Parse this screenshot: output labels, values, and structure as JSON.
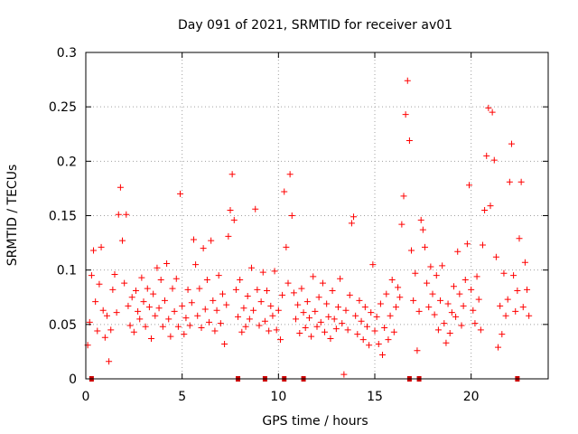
{
  "chart_data": {
    "type": "scatter",
    "title": "Day 091 of 2021, SRMTID for receiver av01",
    "xlabel": "GPS time / hours",
    "ylabel": "SRMTID / TECUs",
    "xlim": [
      0,
      24
    ],
    "ylim": [
      0,
      0.3
    ],
    "xticks": [
      0,
      5,
      10,
      15,
      20
    ],
    "xtick_labels": [
      "0",
      "5",
      "10",
      "15",
      "20"
    ],
    "yticks": [
      0,
      0.05,
      0.1,
      0.15,
      0.2,
      0.25,
      0.3
    ],
    "ytick_labels": [
      "0",
      "0.05",
      "0.1",
      "0.15",
      "0.2",
      "0.25",
      "0.3"
    ],
    "grid": true,
    "marker": "+",
    "series": [
      {
        "name": "SRMTID",
        "color": "#ff0000",
        "points": [
          [
            0.1,
            0.031
          ],
          [
            0.2,
            0.052
          ],
          [
            0.3,
            0.095
          ],
          [
            0.4,
            0.118
          ],
          [
            0.5,
            0.071
          ],
          [
            0.6,
            0.044
          ],
          [
            0.7,
            0.087
          ],
          [
            0.8,
            0.121
          ],
          [
            0.9,
            0.063
          ],
          [
            1.0,
            0.038
          ],
          [
            1.1,
            0.058
          ],
          [
            1.2,
            0.016
          ],
          [
            1.3,
            0.045
          ],
          [
            1.4,
            0.082
          ],
          [
            1.5,
            0.096
          ],
          [
            1.6,
            0.061
          ],
          [
            1.7,
            0.151
          ],
          [
            1.8,
            0.176
          ],
          [
            1.9,
            0.127
          ],
          [
            2.0,
            0.088
          ],
          [
            2.1,
            0.151
          ],
          [
            2.2,
            0.067
          ],
          [
            2.3,
            0.049
          ],
          [
            2.4,
            0.075
          ],
          [
            2.5,
            0.043
          ],
          [
            2.6,
            0.081
          ],
          [
            2.7,
            0.062
          ],
          [
            2.8,
            0.055
          ],
          [
            2.9,
            0.093
          ],
          [
            3.0,
            0.071
          ],
          [
            3.1,
            0.048
          ],
          [
            3.2,
            0.083
          ],
          [
            3.3,
            0.066
          ],
          [
            3.4,
            0.037
          ],
          [
            3.5,
            0.078
          ],
          [
            3.6,
            0.058
          ],
          [
            3.7,
            0.102
          ],
          [
            3.8,
            0.065
          ],
          [
            3.9,
            0.091
          ],
          [
            4.0,
            0.048
          ],
          [
            4.1,
            0.072
          ],
          [
            4.2,
            0.106
          ],
          [
            4.3,
            0.055
          ],
          [
            4.4,
            0.039
          ],
          [
            4.5,
            0.083
          ],
          [
            4.6,
            0.062
          ],
          [
            4.7,
            0.092
          ],
          [
            4.8,
            0.048
          ],
          [
            4.9,
            0.17
          ],
          [
            5.0,
            0.067
          ],
          [
            5.1,
            0.041
          ],
          [
            5.2,
            0.056
          ],
          [
            5.3,
            0.082
          ],
          [
            5.4,
            0.049
          ],
          [
            5.5,
            0.07
          ],
          [
            5.6,
            0.128
          ],
          [
            5.7,
            0.105
          ],
          [
            5.8,
            0.058
          ],
          [
            5.9,
            0.083
          ],
          [
            6.0,
            0.047
          ],
          [
            6.1,
            0.12
          ],
          [
            6.2,
            0.064
          ],
          [
            6.3,
            0.091
          ],
          [
            6.4,
            0.052
          ],
          [
            6.5,
            0.127
          ],
          [
            6.6,
            0.072
          ],
          [
            6.7,
            0.044
          ],
          [
            6.8,
            0.063
          ],
          [
            6.9,
            0.095
          ],
          [
            7.0,
            0.051
          ],
          [
            7.1,
            0.078
          ],
          [
            7.2,
            0.032
          ],
          [
            7.3,
            0.068
          ],
          [
            7.4,
            0.131
          ],
          [
            7.5,
            0.155
          ],
          [
            7.6,
            0.188
          ],
          [
            7.7,
            0.146
          ],
          [
            7.8,
            0.082
          ],
          [
            7.9,
            0.057
          ],
          [
            8.0,
            0.091
          ],
          [
            8.1,
            0.043
          ],
          [
            8.2,
            0.065
          ],
          [
            8.3,
            0.048
          ],
          [
            8.4,
            0.076
          ],
          [
            8.5,
            0.055
          ],
          [
            8.6,
            0.102
          ],
          [
            8.7,
            0.063
          ],
          [
            8.8,
            0.156
          ],
          [
            8.9,
            0.082
          ],
          [
            9.0,
            0.049
          ],
          [
            9.1,
            0.071
          ],
          [
            9.2,
            0.098
          ],
          [
            9.3,
            0.053
          ],
          [
            9.4,
            0.081
          ],
          [
            9.5,
            0.044
          ],
          [
            9.6,
            0.067
          ],
          [
            9.7,
            0.058
          ],
          [
            9.8,
            0.099
          ],
          [
            9.9,
            0.045
          ],
          [
            10.0,
            0.063
          ],
          [
            10.1,
            0.036
          ],
          [
            10.2,
            0.077
          ],
          [
            10.3,
            0.172
          ],
          [
            10.4,
            0.121
          ],
          [
            10.5,
            0.088
          ],
          [
            10.6,
            0.188
          ],
          [
            10.7,
            0.15
          ],
          [
            10.8,
            0.079
          ],
          [
            10.9,
            0.055
          ],
          [
            11.0,
            0.068
          ],
          [
            11.1,
            0.042
          ],
          [
            11.2,
            0.083
          ],
          [
            11.3,
            0.061
          ],
          [
            11.4,
            0.047
          ],
          [
            11.5,
            0.071
          ],
          [
            11.6,
            0.056
          ],
          [
            11.7,
            0.039
          ],
          [
            11.8,
            0.094
          ],
          [
            11.9,
            0.062
          ],
          [
            12.0,
            0.048
          ],
          [
            12.1,
            0.075
          ],
          [
            12.2,
            0.052
          ],
          [
            12.3,
            0.088
          ],
          [
            12.4,
            0.043
          ],
          [
            12.5,
            0.069
          ],
          [
            12.6,
            0.057
          ],
          [
            12.7,
            0.037
          ],
          [
            12.8,
            0.081
          ],
          [
            12.9,
            0.055
          ],
          [
            13.0,
            0.046
          ],
          [
            13.1,
            0.066
          ],
          [
            13.2,
            0.092
          ],
          [
            13.3,
            0.051
          ],
          [
            13.4,
            0.004
          ],
          [
            13.5,
            0.063
          ],
          [
            13.6,
            0.045
          ],
          [
            13.7,
            0.077
          ],
          [
            13.8,
            0.143
          ],
          [
            13.9,
            0.149
          ],
          [
            14.0,
            0.058
          ],
          [
            14.1,
            0.041
          ],
          [
            14.2,
            0.072
          ],
          [
            14.3,
            0.053
          ],
          [
            14.4,
            0.036
          ],
          [
            14.5,
            0.066
          ],
          [
            14.6,
            0.048
          ],
          [
            14.7,
            0.031
          ],
          [
            14.8,
            0.061
          ],
          [
            14.9,
            0.105
          ],
          [
            15.0,
            0.044
          ],
          [
            15.1,
            0.057
          ],
          [
            15.2,
            0.032
          ],
          [
            15.3,
            0.069
          ],
          [
            15.4,
            0.022
          ],
          [
            15.5,
            0.047
          ],
          [
            15.6,
            0.078
          ],
          [
            15.7,
            0.036
          ],
          [
            15.8,
            0.058
          ],
          [
            15.9,
            0.091
          ],
          [
            16.0,
            0.043
          ],
          [
            16.1,
            0.066
          ],
          [
            16.2,
            0.084
          ],
          [
            16.3,
            0.075
          ],
          [
            16.4,
            0.142
          ],
          [
            16.5,
            0.168
          ],
          [
            16.6,
            0.243
          ],
          [
            16.7,
            0.274
          ],
          [
            16.8,
            0.219
          ],
          [
            16.9,
            0.118
          ],
          [
            17.0,
            0.072
          ],
          [
            17.1,
            0.097
          ],
          [
            17.2,
            0.026
          ],
          [
            17.3,
            0.062
          ],
          [
            17.4,
            0.146
          ],
          [
            17.5,
            0.137
          ],
          [
            17.6,
            0.121
          ],
          [
            17.7,
            0.088
          ],
          [
            17.8,
            0.066
          ],
          [
            17.9,
            0.103
          ],
          [
            18.0,
            0.078
          ],
          [
            18.1,
            0.059
          ],
          [
            18.2,
            0.095
          ],
          [
            18.3,
            0.045
          ],
          [
            18.4,
            0.072
          ],
          [
            18.5,
            0.104
          ],
          [
            18.6,
            0.051
          ],
          [
            18.7,
            0.033
          ],
          [
            18.8,
            0.069
          ],
          [
            18.9,
            0.042
          ],
          [
            19.0,
            0.061
          ],
          [
            19.1,
            0.085
          ],
          [
            19.2,
            0.057
          ],
          [
            19.3,
            0.117
          ],
          [
            19.4,
            0.078
          ],
          [
            19.5,
            0.049
          ],
          [
            19.6,
            0.067
          ],
          [
            19.7,
            0.091
          ],
          [
            19.8,
            0.124
          ],
          [
            19.9,
            0.178
          ],
          [
            20.0,
            0.082
          ],
          [
            20.1,
            0.063
          ],
          [
            20.2,
            0.051
          ],
          [
            20.3,
            0.094
          ],
          [
            20.4,
            0.073
          ],
          [
            20.5,
            0.045
          ],
          [
            20.6,
            0.123
          ],
          [
            20.7,
            0.155
          ],
          [
            20.8,
            0.205
          ],
          [
            20.9,
            0.249
          ],
          [
            21.0,
            0.159
          ],
          [
            21.1,
            0.245
          ],
          [
            21.2,
            0.201
          ],
          [
            21.3,
            0.112
          ],
          [
            21.4,
            0.029
          ],
          [
            21.5,
            0.067
          ],
          [
            21.6,
            0.041
          ],
          [
            21.7,
            0.097
          ],
          [
            21.8,
            0.058
          ],
          [
            21.9,
            0.073
          ],
          [
            22.0,
            0.181
          ],
          [
            22.1,
            0.216
          ],
          [
            22.2,
            0.095
          ],
          [
            22.3,
            0.062
          ],
          [
            22.4,
            0.081
          ],
          [
            22.5,
            0.129
          ],
          [
            22.6,
            0.181
          ],
          [
            22.7,
            0.066
          ],
          [
            22.8,
            0.107
          ],
          [
            22.9,
            0.082
          ],
          [
            23.0,
            0.058
          ]
        ]
      }
    ],
    "baseline_markers": {
      "color": "#cc0000",
      "y": 0,
      "x": [
        0.3,
        7.9,
        9.3,
        10.3,
        11.3,
        16.8,
        17.3,
        22.4
      ]
    }
  }
}
